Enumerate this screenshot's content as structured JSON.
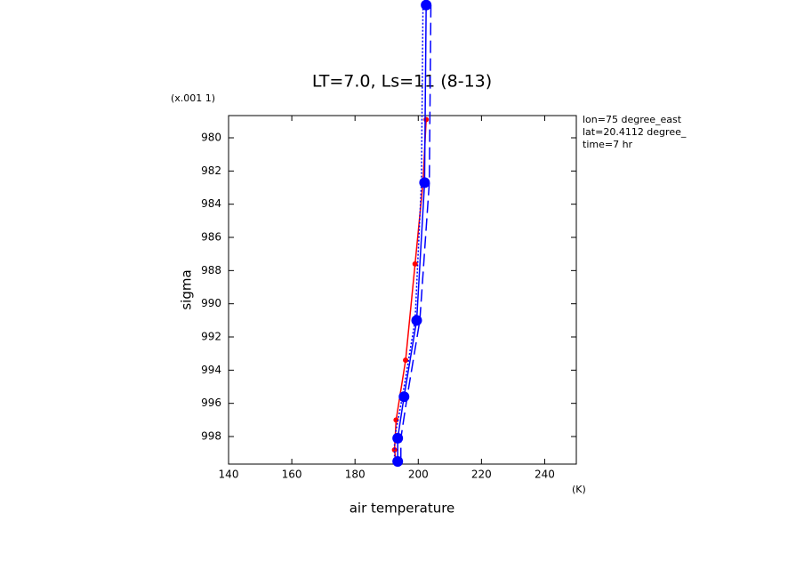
{
  "chart_data": {
    "type": "line",
    "title": "LT=7.0, Ls=11 (8-13)",
    "x_label": "air temperature",
    "x_units": "(K)",
    "y_label": "sigma",
    "y_units": "(x.001 1)",
    "annotations": [
      "lon=75 degree_east",
      "lat=20.4112 degree_",
      "time=7 hr"
    ],
    "xlim": [
      140,
      250
    ],
    "xticks": [
      140,
      160,
      180,
      200,
      220,
      240
    ],
    "ylim": [
      999.66,
      978.66
    ],
    "yticks": [
      980,
      982,
      984,
      986,
      988,
      990,
      992,
      994,
      996,
      998
    ],
    "series": [
      {
        "color": "#ff0000",
        "style": "solid",
        "marker": "dot",
        "x": [
          202.5,
          201.5,
          199,
          196,
          193,
          192.5,
          193
        ],
        "values": [
          978.9,
          982.7,
          987.6,
          993.4,
          997.0,
          998.8,
          999.6
        ]
      },
      {
        "color": "#0000ff",
        "style": "solid",
        "marker": "circle",
        "x": [
          202.5,
          202,
          199.5,
          195.5,
          193.5,
          193.5
        ],
        "values": [
          972,
          982.7,
          991.0,
          995.6,
          998.1,
          999.5
        ]
      },
      {
        "color": "#0000ff",
        "style": "dashed",
        "marker": "none",
        "x": [
          204,
          203.5,
          200.5,
          196.5,
          194.5,
          194.5
        ],
        "values": [
          972,
          982.7,
          991.0,
          995.6,
          998.1,
          999.5
        ]
      },
      {
        "color": "#0000ff",
        "style": "dotted",
        "marker": "none",
        "x": [
          201.5,
          201,
          199,
          195,
          192.5,
          192.5
        ],
        "values": [
          972,
          982.7,
          991.0,
          995.6,
          998.1,
          999.5
        ]
      }
    ]
  }
}
